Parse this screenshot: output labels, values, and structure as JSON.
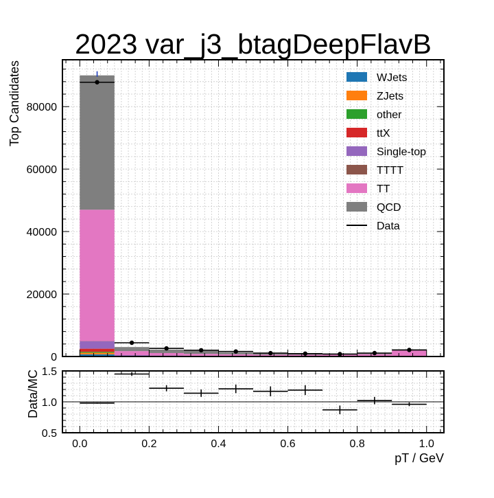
{
  "chart_data": {
    "type": "bar",
    "title": "2023 var_j3_btagDeepFlavB",
    "xlabel": "pT / GeV",
    "ylabel": "Top Candidates",
    "ratio_ylabel": "Data/MC",
    "bin_edges": [
      0.0,
      0.1,
      0.2,
      0.3,
      0.4,
      0.5,
      0.6,
      0.7,
      0.8,
      0.9,
      1.0
    ],
    "x_ticks": [
      0.0,
      0.2,
      0.4,
      0.6,
      0.8,
      1.0
    ],
    "x_tick_labels": [
      "0.0",
      "0.2",
      "0.4",
      "0.6",
      "0.8",
      "1.0"
    ],
    "xlim": [
      -0.05,
      1.05
    ],
    "ylim": [
      0,
      95000
    ],
    "y_ticks": [
      0,
      20000,
      40000,
      60000,
      80000
    ],
    "y_tick_labels": [
      "0",
      "20000",
      "40000",
      "60000",
      "80000"
    ],
    "ratio_ylim": [
      0.5,
      1.5
    ],
    "ratio_y_ticks": [
      0.5,
      1.0,
      1.5
    ],
    "ratio_y_tick_labels": [
      "0.5",
      "1.0",
      "1.5"
    ],
    "grid": true,
    "legend_position": "top-right",
    "stack_order": [
      "WJets",
      "ZJets",
      "other",
      "ttX",
      "Single-top",
      "TTTT",
      "TT",
      "QCD"
    ],
    "series": [
      {
        "name": "WJets",
        "color": "#1f77b4",
        "values": [
          700,
          30,
          20,
          15,
          12,
          10,
          10,
          10,
          10,
          15
        ]
      },
      {
        "name": "ZJets",
        "color": "#ff7f0e",
        "values": [
          500,
          20,
          15,
          10,
          8,
          6,
          6,
          6,
          6,
          10
        ]
      },
      {
        "name": "other",
        "color": "#2ca02c",
        "values": [
          300,
          20,
          15,
          10,
          8,
          6,
          6,
          6,
          6,
          10
        ]
      },
      {
        "name": "ttX",
        "color": "#d62728",
        "values": [
          1000,
          150,
          100,
          80,
          70,
          60,
          50,
          50,
          50,
          80
        ]
      },
      {
        "name": "Single-top",
        "color": "#9467bd",
        "values": [
          2400,
          200,
          150,
          120,
          100,
          80,
          70,
          60,
          60,
          100
        ]
      },
      {
        "name": "TTTT",
        "color": "#8c564b",
        "values": [
          50,
          10,
          10,
          10,
          10,
          10,
          10,
          10,
          10,
          10
        ]
      },
      {
        "name": "TT",
        "color": "#e377c2",
        "values": [
          42050,
          1300,
          800,
          600,
          500,
          400,
          400,
          450,
          600,
          1650
        ]
      },
      {
        "name": "QCD",
        "color": "#7f7f7f",
        "values": [
          43000,
          1300,
          1100,
          950,
          600,
          350,
          250,
          300,
          400,
          300
        ]
      }
    ],
    "data": {
      "name": "Data",
      "color": "#000000",
      "values": [
        87800,
        4400,
        2600,
        2000,
        1600,
        1080,
        930,
        780,
        1100,
        2100
      ]
    },
    "ratio": [
      0.98,
      1.45,
      1.22,
      1.14,
      1.21,
      1.17,
      1.19,
      0.87,
      1.02,
      0.96
    ],
    "ratio_errors": [
      0.01,
      0.03,
      0.05,
      0.06,
      0.07,
      0.08,
      0.08,
      0.07,
      0.06,
      0.03
    ]
  }
}
